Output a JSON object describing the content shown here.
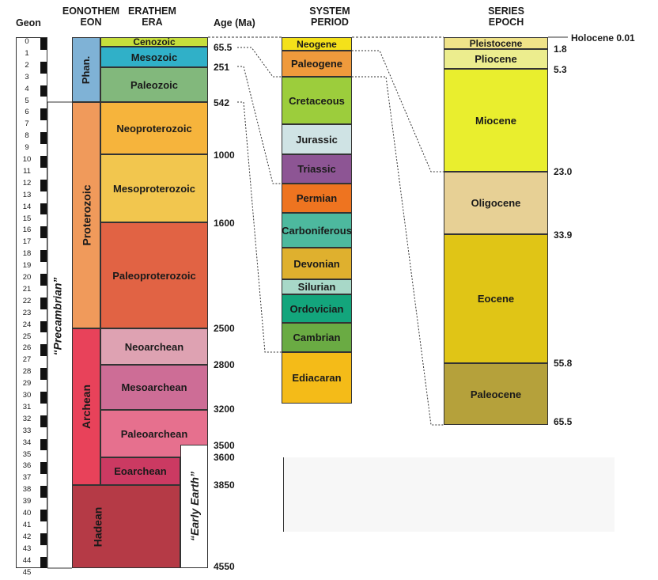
{
  "headers": {
    "geon": "Geon",
    "eonothem": "EONOTHEM",
    "eon": "EON",
    "erathem": "ERATHEM",
    "era": "ERA",
    "age": "Age (Ma)",
    "system": "SYSTEM",
    "period": "PERIOD",
    "series": "SERIES",
    "epoch": "EPOCH"
  },
  "geons": [
    "0",
    "1",
    "2",
    "3",
    "4",
    "5",
    "6",
    "7",
    "8",
    "9",
    "10",
    "11",
    "12",
    "13",
    "14",
    "15",
    "16",
    "17",
    "18",
    "19",
    "20",
    "21",
    "22",
    "23",
    "24",
    "25",
    "26",
    "27",
    "28",
    "29",
    "30",
    "31",
    "32",
    "33",
    "34",
    "35",
    "36",
    "37",
    "38",
    "39",
    "40",
    "41",
    "42",
    "43",
    "44",
    "45"
  ],
  "eons": [
    {
      "name": "Phan.",
      "color": "#7fb2d6"
    },
    {
      "name": "Proterozoic",
      "color": "#f09a5b"
    },
    {
      "name": "Archean",
      "color": "#e8425a"
    },
    {
      "name": "Hadean",
      "color": "#b53a46"
    }
  ],
  "era_labels": {
    "precambrian": "“Precambrian”",
    "early_earth": "“Early Earth”"
  },
  "eras": [
    {
      "name": "Cenozoic",
      "color": "#c7df3c"
    },
    {
      "name": "Mesozoic",
      "color": "#30b0c8"
    },
    {
      "name": "Paleozoic",
      "color": "#82b87c"
    },
    {
      "name": "Neoproterozoic",
      "color": "#f6b43c"
    },
    {
      "name": "Mesoproterozoic",
      "color": "#f2c64e"
    },
    {
      "name": "Paleoproterozoic",
      "color": "#e16344"
    },
    {
      "name": "Neoarchean",
      "color": "#dea2b2"
    },
    {
      "name": "Mesoarchean",
      "color": "#cd6d96"
    },
    {
      "name": "Paleoarchean",
      "color": "#e6708e"
    },
    {
      "name": "Eoarchean",
      "color": "#cb3a62"
    }
  ],
  "era_ages": [
    "65.5",
    "251",
    "542",
    "1000",
    "1600",
    "2500",
    "2800",
    "3200",
    "3500",
    "3600",
    "3850",
    "4550"
  ],
  "periods": [
    {
      "name": "Neogene",
      "color": "#f4e11a"
    },
    {
      "name": "Paleogene",
      "color": "#ef9a3c"
    },
    {
      "name": "Cretaceous",
      "color": "#9ccd3c"
    },
    {
      "name": "Jurassic",
      "color": "#cfe3e4"
    },
    {
      "name": "Triassic",
      "color": "#8d5594"
    },
    {
      "name": "Permian",
      "color": "#ee7420"
    },
    {
      "name": "Carboniferous",
      "color": "#4db99e"
    },
    {
      "name": "Devonian",
      "color": "#dfb02e"
    },
    {
      "name": "Silurian",
      "color": "#a8d8c8"
    },
    {
      "name": "Ordovician",
      "color": "#13a57c"
    },
    {
      "name": "Cambrian",
      "color": "#6aab43"
    },
    {
      "name": "Ediacaran",
      "color": "#f4bb18"
    }
  ],
  "epochs": [
    {
      "name": "Pleistocene",
      "color": "#f0e389"
    },
    {
      "name": "Pliocene",
      "color": "#eced8e"
    },
    {
      "name": "Miocene",
      "color": "#e9ee2e"
    },
    {
      "name": "Oligocene",
      "color": "#e7d095"
    },
    {
      "name": "Eocene",
      "color": "#e0c516"
    },
    {
      "name": "Paleocene",
      "color": "#b5a13b"
    }
  ],
  "epoch_ages": [
    "Holocene 0.01",
    "1.8",
    "5.3",
    "23.0",
    "33.9",
    "55.8",
    "65.5"
  ]
}
